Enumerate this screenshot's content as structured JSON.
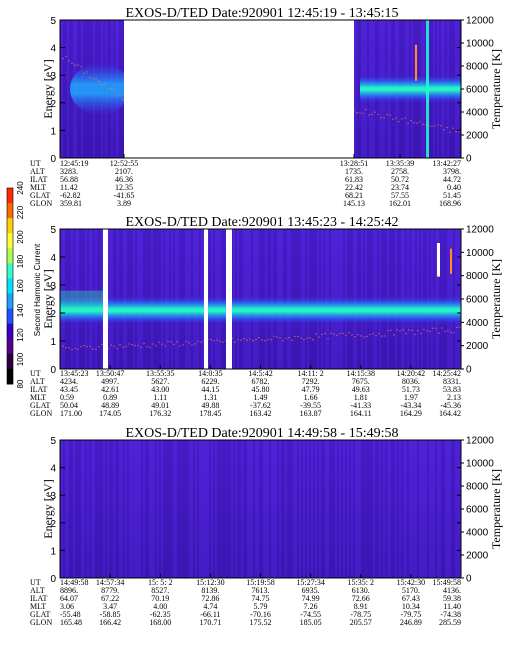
{
  "colorbar": {
    "label": "Second Harmonic Current",
    "ticks": [
      "240",
      "220",
      "200",
      "180",
      "160",
      "140",
      "120",
      "100",
      "80"
    ],
    "colors": [
      "#ff2a00",
      "#ff6a00",
      "#ffd000",
      "#ffff33",
      "#aaff55",
      "#33ffcc",
      "#00e0ff",
      "#1ea0ff",
      "#2050ff",
      "#3a00c8",
      "#5a0090",
      "#2a0040",
      "#000000"
    ]
  },
  "chart_data": [
    {
      "type": "heatmap",
      "title": "EXOS-D/TED   Date:920901   12:45:19 - 13:45:15",
      "ylabel": "Energy [eV]",
      "ylabel_right": "Temperature [K]",
      "ylim": [
        0,
        5
      ],
      "ylim_right": [
        0,
        12000
      ],
      "yticks": [
        "0",
        "1",
        "2",
        "3",
        "4",
        "5"
      ],
      "yticks_right": [
        "0",
        "2000",
        "4000",
        "6000",
        "8000",
        "10000",
        "12000"
      ],
      "row_labels": [
        "UT",
        "ALT",
        "ILAT",
        "MLT",
        "GLAT",
        "GLON"
      ],
      "columns": [
        {
          "UT": "12:45:19",
          "ALT": "3283.",
          "ILAT": "56.88",
          "MLT": "11.42",
          "GLAT": "-62.82",
          "GLON": "359.81"
        },
        {
          "UT": "12:52:55",
          "ALT": "2107.",
          "ILAT": "46.36",
          "MLT": "12.35",
          "GLAT": "-41.65",
          "GLON": "3.89"
        },
        {
          "UT": "13:28:51",
          "ALT": "1735.",
          "ILAT": "61.83",
          "MLT": "22.42",
          "GLAT": "68.21",
          "GLON": "145.13"
        },
        {
          "UT": "13:35:39",
          "ALT": "2758.",
          "ILAT": "50.72",
          "MLT": "23.74",
          "GLAT": "57.55",
          "GLON": "162.01"
        },
        {
          "UT": "13:42:27",
          "ALT": "3798.",
          "ILAT": "44.72",
          "MLT": "0.40",
          "GLAT": "51.45",
          "GLON": "168.96"
        }
      ]
    },
    {
      "type": "heatmap",
      "title": "EXOS-D/TED   Date:920901   13:45:23 - 14:25:42",
      "ylabel": "Energy [eV]",
      "ylabel_right": "Temperature [K]",
      "ylim": [
        0,
        5
      ],
      "ylim_right": [
        0,
        12000
      ],
      "yticks": [
        "0",
        "1",
        "2",
        "3",
        "4",
        "5"
      ],
      "yticks_right": [
        "0",
        "2000",
        "4000",
        "6000",
        "8000",
        "10000",
        "12000"
      ],
      "row_labels": [
        "UT",
        "ALT",
        "ILAT",
        "MLT",
        "GLAT",
        "GLON"
      ],
      "columns": [
        {
          "UT": "13:45:23",
          "ALT": "4234.",
          "ILAT": "43.45",
          "MLT": "0.59",
          "GLAT": "50.04",
          "GLON": "171.00"
        },
        {
          "UT": "13:50:47",
          "ALT": "4997.",
          "ILAT": "42.61",
          "MLT": "0.89",
          "GLAT": "48.89",
          "GLON": "174.05"
        },
        {
          "UT": "13:55:35",
          "ALT": "5627.",
          "ILAT": "43.00",
          "MLT": "1.11",
          "GLAT": "49.01",
          "GLON": "176.32"
        },
        {
          "UT": "14:0:35",
          "ALT": "6229.",
          "ILAT": "44.15",
          "MLT": "1.31",
          "GLAT": "49.88",
          "GLON": "178.45"
        },
        {
          "UT": "14:5:42",
          "ALT": "6782.",
          "ILAT": "45.80",
          "MLT": "1.49",
          "GLAT": "-37.62",
          "GLON": "163.42"
        },
        {
          "UT": "14:11: 2",
          "ALT": "7292.",
          "ILAT": "47.79",
          "MLT": "1.66",
          "GLAT": "-39.55",
          "GLON": "163.87"
        },
        {
          "UT": "14:15:38",
          "ALT": "7675.",
          "ILAT": "49.63",
          "MLT": "1.81",
          "GLAT": "-41.33",
          "GLON": "164.11"
        },
        {
          "UT": "14:20:42",
          "ALT": "8036.",
          "ILAT": "51.73",
          "MLT": "1.97",
          "GLAT": "-43.34",
          "GLON": "164.29"
        },
        {
          "UT": "14:25:42",
          "ALT": "8331.",
          "ILAT": "53.83",
          "MLT": "2.13",
          "GLAT": "-45.36",
          "GLON": "164.42"
        }
      ]
    },
    {
      "type": "heatmap",
      "title": "EXOS-D/TED   Date:920901   14:49:58 - 15:49:58",
      "ylabel": "Energy [eV]",
      "ylabel_right": "Temperature [K]",
      "ylim": [
        0,
        5
      ],
      "ylim_right": [
        0,
        12000
      ],
      "yticks": [
        "0",
        "1",
        "2",
        "3",
        "4",
        "5"
      ],
      "yticks_right": [
        "0",
        "2000",
        "4000",
        "6000",
        "8000",
        "10000",
        "12000"
      ],
      "row_labels": [
        "UT",
        "ALT",
        "ILAT",
        "MLT",
        "GLAT",
        "GLON"
      ],
      "columns": [
        {
          "UT": "14:49:58",
          "ALT": "8896.",
          "ILAT": "64.07",
          "MLT": "3.06",
          "GLAT": "-55.48",
          "GLON": "165.48"
        },
        {
          "UT": "14:57:34",
          "ALT": "8779.",
          "ILAT": "67.22",
          "MLT": "3.47",
          "GLAT": "-58.85",
          "GLON": "166.42"
        },
        {
          "UT": "15: 5: 2",
          "ALT": "8527.",
          "ILAT": "70.19",
          "MLT": "4.00",
          "GLAT": "-62.35",
          "GLON": "168.00"
        },
        {
          "UT": "15:12:30",
          "ALT": "8139.",
          "ILAT": "72.86",
          "MLT": "4.74",
          "GLAT": "-66.11",
          "GLON": "170.71"
        },
        {
          "UT": "15:19:58",
          "ALT": "7613.",
          "ILAT": "74.75",
          "MLT": "5.79",
          "GLAT": "-70.16",
          "GLON": "175.52"
        },
        {
          "UT": "15:27:34",
          "ALT": "6935.",
          "ILAT": "74.99",
          "MLT": "7.26",
          "GLAT": "-74.55",
          "GLON": "185.05"
        },
        {
          "UT": "15:35: 2",
          "ALT": "6130.",
          "ILAT": "72.66",
          "MLT": "8.91",
          "GLAT": "-78.75",
          "GLON": "205.57"
        },
        {
          "UT": "15:42:30",
          "ALT": "5170.",
          "ILAT": "67.43",
          "MLT": "10.34",
          "GLAT": "-79.75",
          "GLON": "246.89"
        },
        {
          "UT": "15:49:58",
          "ALT": "4136.",
          "ILAT": "59.38",
          "MLT": "11.40",
          "GLAT": "-74.38",
          "GLON": "285.59"
        }
      ]
    }
  ]
}
